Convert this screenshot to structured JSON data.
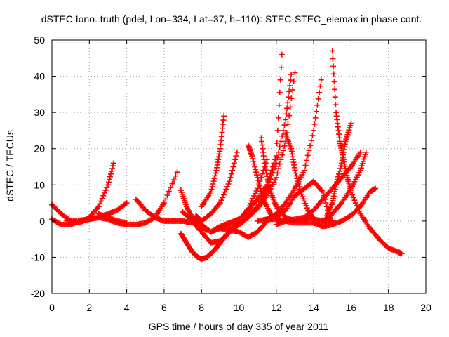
{
  "chart_data": {
    "type": "scatter",
    "title": "dSTEC Iono. truth (pdel, Lon=334, Lat=37, h=110): STEC-STEC_elemax in phase cont.",
    "xlabel": "GPS time / hours of day 335 of year 2011",
    "ylabel": "dSTEC  / TECUs",
    "xlim": [
      0,
      20
    ],
    "ylim": [
      -20,
      50
    ],
    "xticks": [
      0,
      2,
      4,
      6,
      8,
      10,
      12,
      14,
      16,
      18,
      20
    ],
    "yticks": [
      -20,
      -10,
      0,
      10,
      20,
      30,
      40,
      50
    ],
    "grid": true,
    "marker": "+",
    "color": "#ff0000",
    "series": [
      {
        "x": [
          0.0,
          0.5,
          1.0,
          1.5,
          2.0,
          2.5,
          3.0,
          3.3
        ],
        "y": [
          4.5,
          2.0,
          0.0,
          -0.5,
          1.0,
          4.0,
          10.0,
          16.0
        ]
      },
      {
        "x": [
          0.0,
          0.5,
          1.0,
          1.5,
          2.0,
          2.5,
          3.0,
          3.5,
          4.0
        ],
        "y": [
          0.5,
          -1.0,
          -1.0,
          0.0,
          0.5,
          1.0,
          2.0,
          3.0,
          5.0
        ]
      },
      {
        "x": [
          0.8,
          1.5,
          2.0,
          2.5,
          3.0,
          3.5,
          4.0,
          4.5,
          5.0,
          5.5,
          6.0,
          6.7
        ],
        "y": [
          0.0,
          0.2,
          0.5,
          1.0,
          0.5,
          -0.5,
          -1.0,
          -1.0,
          -0.5,
          1.0,
          5.0,
          13.5
        ]
      },
      {
        "x": [
          2.5,
          3.0,
          3.5,
          4.0
        ],
        "y": [
          2.0,
          1.0,
          0.0,
          -0.5
        ]
      },
      {
        "x": [
          4.5,
          5.0,
          5.5,
          6.0,
          6.5,
          7.0,
          7.5
        ],
        "y": [
          6.0,
          3.0,
          1.0,
          0.0,
          0.0,
          0.0,
          -0.5
        ]
      },
      {
        "x": [
          6.9,
          7.2,
          7.5,
          8.0,
          8.3
        ],
        "y": [
          8.5,
          4.0,
          1.0,
          -1.5,
          -2.5
        ]
      },
      {
        "x": [
          6.9,
          7.2,
          7.5,
          7.8,
          8.0,
          8.3,
          8.7,
          9.0,
          9.5,
          10.0,
          10.5,
          11.0,
          11.5
        ],
        "y": [
          -3.5,
          -6.0,
          -8.5,
          -10.0,
          -10.5,
          -10.0,
          -8.0,
          -6.0,
          -3.0,
          0.0,
          3.5,
          9.0,
          17.0
        ]
      },
      {
        "x": [
          7.0,
          7.5,
          8.0,
          8.5,
          9.0,
          9.5,
          10.0,
          10.5,
          11.0,
          11.5,
          12.0,
          12.5,
          13.0
        ],
        "y": [
          2.5,
          0.0,
          -3.0,
          -6.0,
          -5.5,
          -3.0,
          -1.0,
          1.0,
          3.5,
          7.0,
          12.0,
          22.0,
          41.0
        ]
      },
      {
        "x": [
          7.5,
          8.0,
          8.5,
          9.0,
          9.5,
          10.0,
          10.5,
          11.0,
          11.5,
          12.0,
          12.3
        ],
        "y": [
          0.0,
          -1.0,
          -3.0,
          -2.0,
          -1.0,
          0.5,
          3.0,
          6.0,
          10.0,
          18.0,
          46.0
        ]
      },
      {
        "x": [
          7.7,
          8.0,
          8.5,
          9.0,
          9.5,
          9.9
        ],
        "y": [
          1.5,
          0.0,
          2.0,
          5.0,
          11.0,
          19.0
        ]
      },
      {
        "x": [
          8.0,
          8.5,
          8.8,
          9.0,
          9.2
        ],
        "y": [
          4.0,
          8.0,
          14.0,
          20.0,
          29.0
        ]
      },
      {
        "x": [
          8.5,
          9.0,
          9.5,
          10.0,
          10.5,
          11.0,
          11.5,
          12.0,
          12.5,
          12.8
        ],
        "y": [
          -3.0,
          -1.5,
          -0.5,
          0.5,
          1.5,
          4.0,
          9.0,
          16.0,
          28.0,
          40.5
        ]
      },
      {
        "x": [
          9.0,
          9.5,
          10.0,
          10.5,
          11.0,
          11.5,
          12.0,
          12.5,
          13.0,
          13.5,
          14.0,
          14.4
        ],
        "y": [
          -2.0,
          -2.5,
          -3.0,
          -4.5,
          -3.0,
          0.0,
          2.0,
          5.0,
          9.0,
          14.0,
          25.0,
          39.0
        ]
      },
      {
        "x": [
          10.5,
          10.7,
          11.0,
          11.3,
          11.7,
          12.0,
          12.3
        ],
        "y": [
          21.0,
          18.0,
          12.0,
          6.0,
          2.0,
          0.5,
          0.0
        ]
      },
      {
        "x": [
          11.2,
          11.4,
          11.7,
          12.0,
          12.5,
          13.0,
          13.5,
          14.0
        ],
        "y": [
          23.0,
          15.0,
          8.0,
          4.0,
          1.0,
          0.0,
          0.5,
          1.0
        ]
      },
      {
        "x": [
          12.5,
          12.8,
          13.0,
          13.3,
          13.7,
          14.0,
          14.5,
          15.0
        ],
        "y": [
          24.0,
          20.0,
          14.0,
          8.0,
          3.0,
          0.5,
          0.0,
          0.0
        ]
      },
      {
        "x": [
          11.0,
          11.5,
          12.0,
          12.5,
          13.0,
          13.5,
          14.0,
          14.5,
          15.0,
          15.5,
          16.0,
          16.5
        ],
        "y": [
          0.0,
          0.5,
          0.5,
          0.0,
          0.5,
          1.0,
          3.0,
          6.0,
          9.0,
          12.0,
          15.0,
          19.0
        ]
      },
      {
        "x": [
          11.5,
          12.0,
          12.5,
          13.0,
          13.5,
          14.0,
          14.5,
          14.9
        ],
        "y": [
          0.5,
          1.0,
          3.0,
          7.0,
          9.0,
          11.0,
          8.0,
          0.0
        ]
      },
      {
        "x": [
          12.0,
          12.5,
          13.0,
          13.5,
          14.0,
          14.5,
          15.0,
          15.5,
          16.0,
          16.5,
          17.0,
          17.3
        ],
        "y": [
          -1.0,
          0.0,
          -0.5,
          -0.5,
          -0.5,
          -1.5,
          -1.0,
          0.0,
          1.5,
          4.0,
          8.0,
          9.0
        ]
      },
      {
        "x": [
          14.5,
          15.0,
          15.5,
          16.0,
          16.5,
          16.8
        ],
        "y": [
          0.0,
          2.0,
          5.0,
          9.0,
          14.0,
          19.0
        ]
      },
      {
        "x": [
          14.7,
          15.0,
          15.2,
          15.5,
          15.7,
          16.0
        ],
        "y": [
          1.5,
          5.0,
          10.0,
          16.0,
          22.0,
          27.0
        ]
      },
      {
        "x": [
          15.0,
          15.2,
          15.4,
          15.6,
          15.8,
          16.0,
          16.5,
          17.0,
          17.5,
          18.0,
          18.5,
          18.7
        ],
        "y": [
          47.0,
          30.0,
          22.0,
          17.0,
          12.0,
          8.0,
          2.0,
          -2.0,
          -5.0,
          -7.5,
          -8.5,
          -9.0
        ]
      }
    ]
  }
}
